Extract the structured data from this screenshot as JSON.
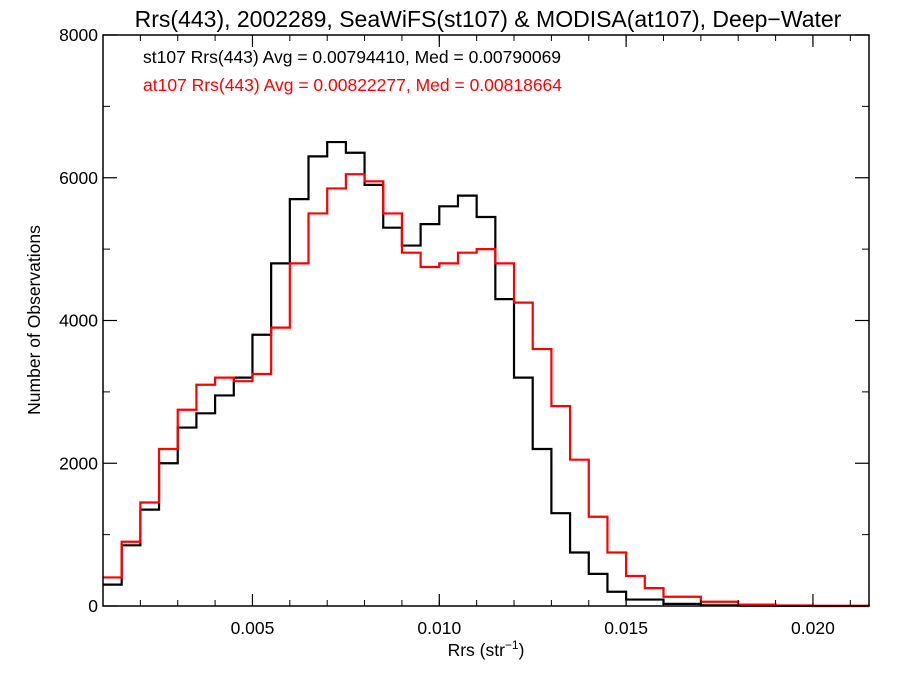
{
  "chart_data": {
    "type": "line",
    "title": "Rrs(443), 2002289, SeaWiFS(st107) & MODISA(at107), Deep−Water",
    "xlabel": "Rrs (str",
    "xlabel_sup": "−1",
    "xlabel_close": ")",
    "ylabel": "Number of Observations",
    "xlim": [
      0.001,
      0.0215
    ],
    "ylim": [
      0,
      8000
    ],
    "x_ticks": [
      {
        "value": 0.005,
        "label": "0.005"
      },
      {
        "value": 0.01,
        "label": "0.010"
      },
      {
        "value": 0.015,
        "label": "0.015"
      },
      {
        "value": 0.02,
        "label": "0.020"
      }
    ],
    "x_minor_step": 0.001,
    "y_ticks": [
      {
        "value": 0,
        "label": "0"
      },
      {
        "value": 2000,
        "label": "2000"
      },
      {
        "value": 4000,
        "label": "4000"
      },
      {
        "value": 6000,
        "label": "6000"
      },
      {
        "value": 8000,
        "label": "8000"
      }
    ],
    "y_minor_step": 1000,
    "annotations": [
      {
        "text": "st107 Rrs(443) Avg = 0.00794410, Med = 0.00790069",
        "color": "#000000"
      },
      {
        "text": "at107 Rrs(443) Avg = 0.00822277, Med = 0.00818664",
        "color": "#ff0000"
      }
    ],
    "series": [
      {
        "color": "#000000",
        "points": [
          [
            0.001,
            300
          ],
          [
            0.0015,
            850
          ],
          [
            0.002,
            1350
          ],
          [
            0.0025,
            2000
          ],
          [
            0.003,
            2500
          ],
          [
            0.0035,
            2700
          ],
          [
            0.004,
            2950
          ],
          [
            0.0045,
            3200
          ],
          [
            0.005,
            3800
          ],
          [
            0.0055,
            4800
          ],
          [
            0.006,
            5700
          ],
          [
            0.0065,
            6300
          ],
          [
            0.007,
            6500
          ],
          [
            0.0075,
            6350
          ],
          [
            0.008,
            5900
          ],
          [
            0.0085,
            5300
          ],
          [
            0.009,
            5050
          ],
          [
            0.0095,
            5350
          ],
          [
            0.01,
            5600
          ],
          [
            0.0105,
            5750
          ],
          [
            0.011,
            5450
          ],
          [
            0.0115,
            4300
          ],
          [
            0.012,
            3200
          ],
          [
            0.0125,
            2200
          ],
          [
            0.013,
            1300
          ],
          [
            0.0135,
            750
          ],
          [
            0.014,
            450
          ],
          [
            0.0145,
            200
          ],
          [
            0.015,
            90
          ],
          [
            0.016,
            30
          ],
          [
            0.017,
            10
          ],
          [
            0.018,
            5
          ],
          [
            0.019,
            2
          ],
          [
            0.02,
            0
          ],
          [
            0.0215,
            0
          ]
        ]
      },
      {
        "color": "#ff0000",
        "points": [
          [
            0.001,
            400
          ],
          [
            0.0015,
            900
          ],
          [
            0.002,
            1450
          ],
          [
            0.0025,
            2200
          ],
          [
            0.003,
            2750
          ],
          [
            0.0035,
            3100
          ],
          [
            0.004,
            3200
          ],
          [
            0.0045,
            3150
          ],
          [
            0.005,
            3250
          ],
          [
            0.0055,
            3900
          ],
          [
            0.006,
            4800
          ],
          [
            0.0065,
            5500
          ],
          [
            0.007,
            5850
          ],
          [
            0.0075,
            6050
          ],
          [
            0.008,
            5950
          ],
          [
            0.0085,
            5500
          ],
          [
            0.009,
            4950
          ],
          [
            0.0095,
            4750
          ],
          [
            0.01,
            4800
          ],
          [
            0.0105,
            4950
          ],
          [
            0.011,
            5000
          ],
          [
            0.0115,
            4800
          ],
          [
            0.012,
            4250
          ],
          [
            0.0125,
            3600
          ],
          [
            0.013,
            2800
          ],
          [
            0.0135,
            2050
          ],
          [
            0.014,
            1250
          ],
          [
            0.0145,
            750
          ],
          [
            0.015,
            420
          ],
          [
            0.0155,
            250
          ],
          [
            0.016,
            130
          ],
          [
            0.017,
            60
          ],
          [
            0.018,
            20
          ],
          [
            0.019,
            8
          ],
          [
            0.02,
            2
          ],
          [
            0.0215,
            0
          ]
        ]
      }
    ]
  }
}
